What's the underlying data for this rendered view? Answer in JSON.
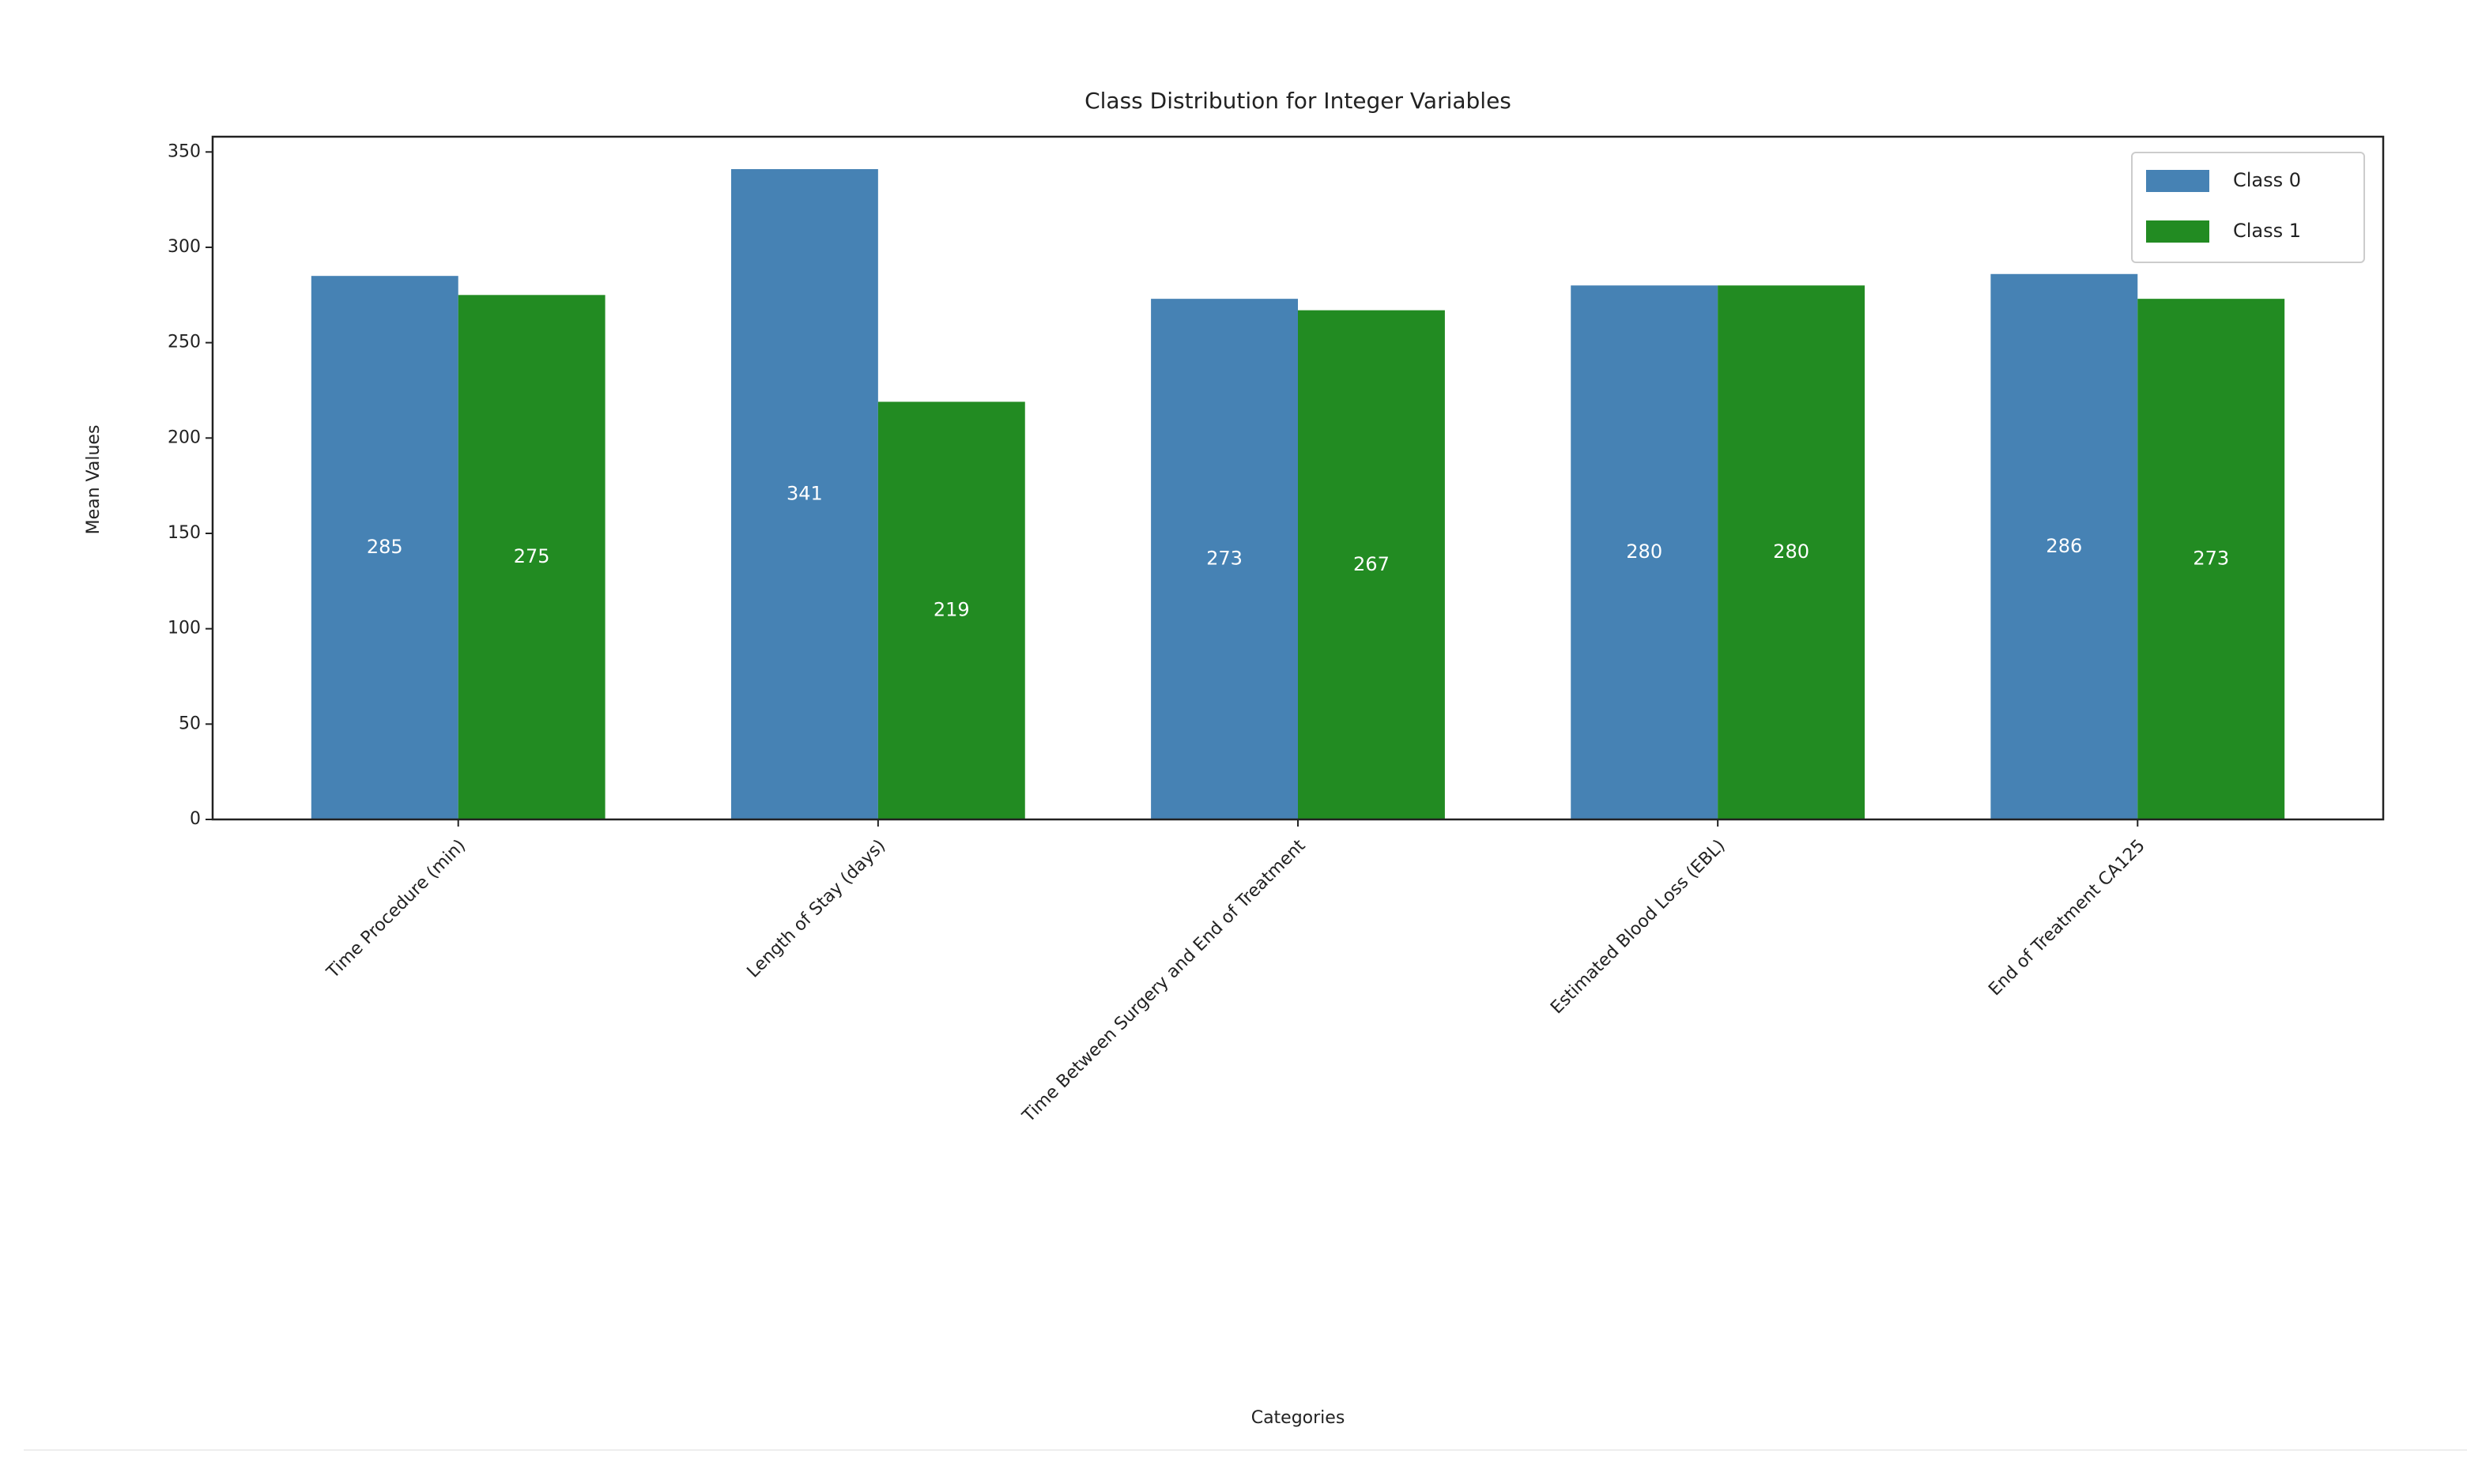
{
  "chart_data": {
    "type": "bar",
    "title": "Class Distribution for Integer Variables",
    "x_label": "Categories",
    "y_label": "Mean Values",
    "categories": [
      "Time Procedure (min)",
      "Length of Stay (days)",
      "Time Between Surgery and End of Treatment",
      "Estimated Blood Loss (EBL)",
      "End of Treatment CA125"
    ],
    "series": [
      {
        "name": "Class 0",
        "color": "#4682b4",
        "values": [
          285,
          341,
          273,
          280,
          286
        ]
      },
      {
        "name": "Class 1",
        "color": "#228b22",
        "values": [
          275,
          219,
          267,
          280,
          273
        ]
      }
    ],
    "ylim": [
      0,
      358
    ],
    "yticks": [
      0,
      50,
      100,
      150,
      200,
      250,
      300,
      350
    ],
    "legend": "upper right"
  }
}
